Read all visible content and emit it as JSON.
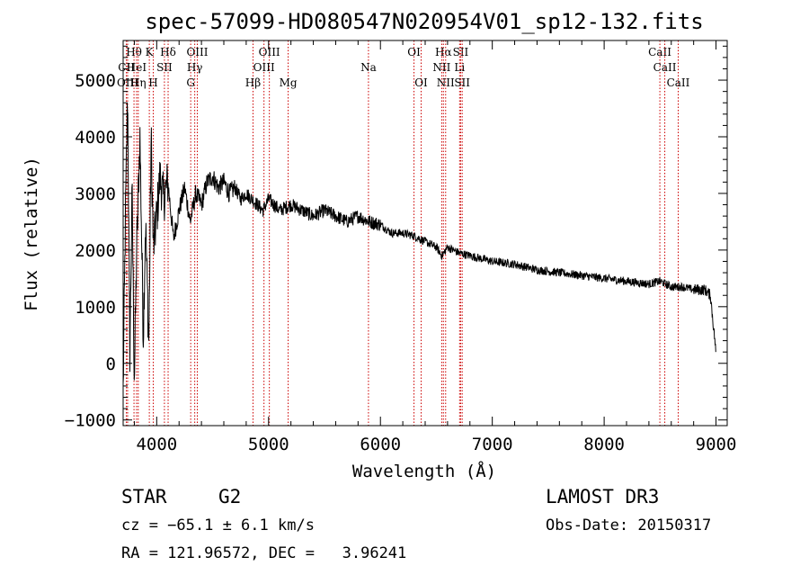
{
  "chart_data": {
    "type": "line",
    "title": "spec-57099-HD080547N020954V01_sp12-132.fits",
    "xlabel": "Wavelength (Å)",
    "ylabel": "Flux (relative)",
    "xlim": [
      3700,
      9100
    ],
    "ylim": [
      -1100,
      5700
    ],
    "xticks": [
      4000,
      5000,
      6000,
      7000,
      8000,
      9000
    ],
    "yticks": [
      -1000,
      0,
      1000,
      2000,
      3000,
      4000,
      5000
    ],
    "series": [
      {
        "name": "flux",
        "x": [
          3700,
          3720,
          3740,
          3760,
          3780,
          3800,
          3820,
          3850,
          3880,
          3900,
          3930,
          3950,
          3970,
          4000,
          4030,
          4060,
          4100,
          4150,
          4200,
          4250,
          4300,
          4350,
          4400,
          4450,
          4500,
          4550,
          4600,
          4650,
          4700,
          4750,
          4800,
          4850,
          4900,
          4950,
          5000,
          5100,
          5200,
          5300,
          5400,
          5500,
          5600,
          5700,
          5800,
          5900,
          6000,
          6100,
          6200,
          6300,
          6400,
          6500,
          6550,
          6600,
          6700,
          6800,
          7000,
          7200,
          7400,
          7600,
          7800,
          8000,
          8200,
          8400,
          8500,
          8600,
          8700,
          8800,
          8900,
          8950,
          9000
        ],
        "values": [
          -500,
          2500,
          4800,
          200,
          3000,
          -300,
          1900,
          4000,
          500,
          2500,
          300,
          4000,
          2000,
          2600,
          3300,
          2900,
          3200,
          2200,
          2700,
          3100,
          2500,
          3000,
          2800,
          3200,
          3300,
          3100,
          3200,
          3000,
          3100,
          2900,
          3000,
          2900,
          2800,
          2700,
          2900,
          2700,
          2800,
          2700,
          2600,
          2700,
          2600,
          2500,
          2600,
          2500,
          2450,
          2300,
          2300,
          2250,
          2150,
          2050,
          1900,
          2050,
          1950,
          1900,
          1800,
          1750,
          1650,
          1600,
          1550,
          1500,
          1450,
          1400,
          1450,
          1350,
          1350,
          1300,
          1300,
          1200,
          200
        ]
      }
    ],
    "lines": [
      {
        "name": "CII",
        "wl": 3729,
        "row": 1
      },
      {
        "name": "OIII",
        "wl": 3740,
        "row": 2
      },
      {
        "name": "Hθ",
        "wl": 3797,
        "row": 0
      },
      {
        "name": "HeI",
        "wl": 3820,
        "row": 1
      },
      {
        "name": "Hη",
        "wl": 3835,
        "row": 2
      },
      {
        "name": "K",
        "wl": 3934,
        "row": 0
      },
      {
        "name": "H",
        "wl": 3969,
        "row": 2
      },
      {
        "name": "SII",
        "wl": 4069,
        "row": 1
      },
      {
        "name": "Hδ",
        "wl": 4102,
        "row": 0
      },
      {
        "name": "G",
        "wl": 4304,
        "row": 2
      },
      {
        "name": "OIII",
        "wl": 4363,
        "row": 0
      },
      {
        "name": "Hγ",
        "wl": 4340,
        "row": 1
      },
      {
        "name": "Hβ",
        "wl": 4861,
        "row": 2
      },
      {
        "name": "OIII",
        "wl": 5007,
        "row": 0
      },
      {
        "name": "OIII",
        "wl": 4959,
        "row": 1
      },
      {
        "name": "Mg",
        "wl": 5175,
        "row": 2
      },
      {
        "name": "Na",
        "wl": 5893,
        "row": 1
      },
      {
        "name": "OI",
        "wl": 6300,
        "row": 0
      },
      {
        "name": "OI",
        "wl": 6364,
        "row": 2
      },
      {
        "name": "Hα",
        "wl": 6563,
        "row": 0
      },
      {
        "name": "NII",
        "wl": 6548,
        "row": 1
      },
      {
        "name": "NII",
        "wl": 6583,
        "row": 2
      },
      {
        "name": "SII",
        "wl": 6717,
        "row": 0
      },
      {
        "name": "Li",
        "wl": 6708,
        "row": 1
      },
      {
        "name": "SII",
        "wl": 6731,
        "row": 2
      },
      {
        "name": "CaII",
        "wl": 8498,
        "row": 0
      },
      {
        "name": "CaII",
        "wl": 8542,
        "row": 1
      },
      {
        "name": "CaII",
        "wl": 8662,
        "row": 2
      }
    ]
  },
  "info": {
    "class": "STAR",
    "subclass": "G2",
    "survey": "LAMOST DR3",
    "cz": "cz = −65.1 ± 6.1 km/s",
    "obs_date": "Obs-Date: 20150317",
    "coords": "RA = 121.96572, DEC =   3.96241"
  }
}
